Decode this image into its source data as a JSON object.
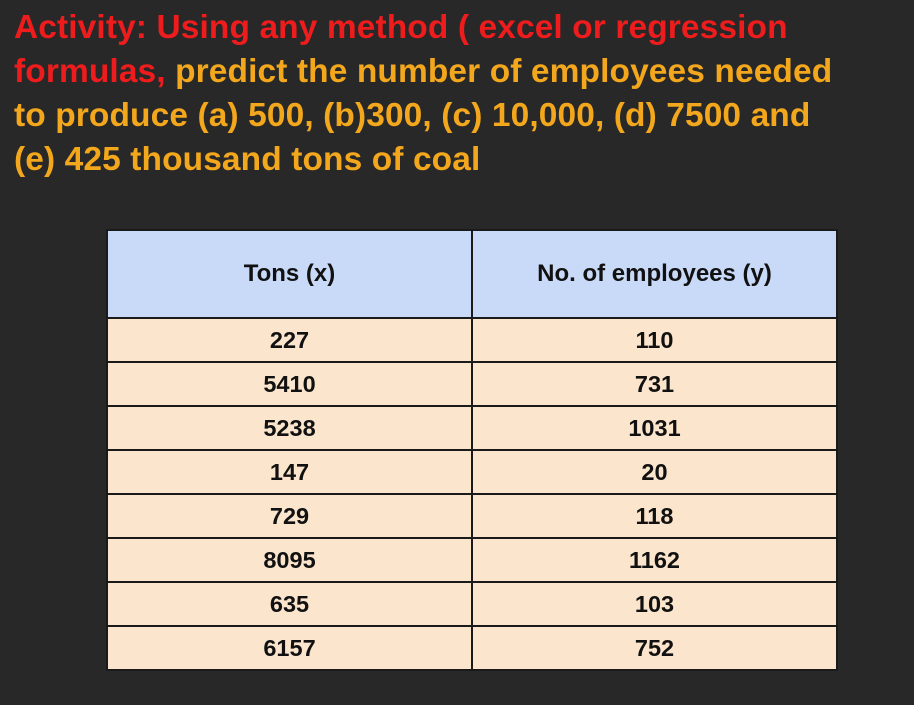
{
  "heading": {
    "line1": "Activity: Using any method ( excel or regression",
    "line2_red": "formulas, ",
    "line2_orange": "predict the number of employees needed",
    "line3": "to produce (a) 500, (b)300,  (c) 10,000,  (d) 7500 and",
    "line4": "(e) 425 thousand tons of coal"
  },
  "colors": {
    "background": "#282828",
    "heading_red": "#ee1c1c",
    "heading_orange": "#f3a71c",
    "header_fill": "#c9daf8",
    "cell_fill": "#fce5cd"
  },
  "table": {
    "headers": [
      "Tons (x)",
      "No. of employees (y)"
    ],
    "rows": [
      [
        "227",
        "110"
      ],
      [
        "5410",
        "731"
      ],
      [
        "5238",
        "1031"
      ],
      [
        "147",
        "20"
      ],
      [
        "729",
        "118"
      ],
      [
        "8095",
        "1162"
      ],
      [
        "635",
        "103"
      ],
      [
        "6157",
        "752"
      ]
    ]
  }
}
